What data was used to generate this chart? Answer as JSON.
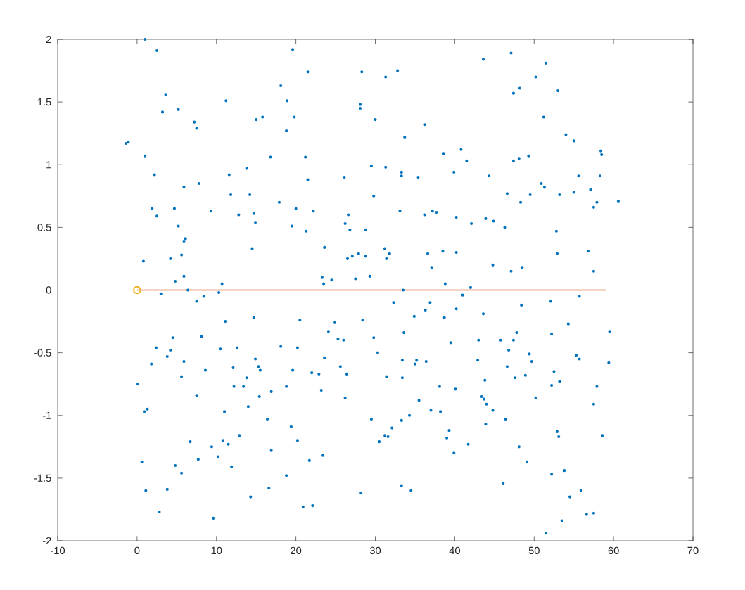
{
  "chart_data": {
    "type": "scatter",
    "xlim": [
      -10,
      70
    ],
    "ylim": [
      -2,
      2
    ],
    "xticks": [
      -10,
      0,
      10,
      20,
      30,
      40,
      50,
      60,
      70
    ],
    "yticks": [
      -2,
      -1.5,
      -1,
      -0.5,
      0,
      0.5,
      1,
      1.5,
      2
    ],
    "grid": false,
    "series": [
      {
        "marker": "circle",
        "color": "#0072bd",
        "x": [
          1.0,
          2.5,
          3.6,
          11.2,
          18.1,
          18.9,
          3.2,
          5.2,
          7.2,
          7.5,
          15.0,
          15.8,
          18.8,
          -1.4,
          -1.1,
          1.0,
          16.8,
          13.8,
          2.2,
          11.6,
          7.8,
          5.9,
          11.8,
          14.2,
          17.9,
          1.9,
          4.7,
          9.3,
          2.5,
          12.8,
          14.7,
          14.9,
          5.2,
          6.1,
          5.9,
          14.5,
          0.8,
          4.2,
          5.6,
          5.9,
          4.8,
          10.7,
          6.4,
          3.0,
          10.3,
          8.4,
          7.5,
          11.1,
          14.7,
          4.5,
          8.1,
          2.4,
          4.2,
          10.5,
          12.6,
          18.1,
          3.8,
          1.8,
          5.9,
          14.9,
          12.1,
          15.3,
          15.5,
          8.6,
          5.6,
          13.8,
          0.1,
          12.2,
          13.4,
          18.8,
          16.9,
          7.5,
          15.4,
          14.0,
          0.9,
          1.3,
          11.0,
          16.4,
          12.9,
          6.7,
          10.8,
          11.5,
          9.4,
          16.9,
          7.7,
          10.2,
          0.6,
          4.8,
          11.9,
          5.6,
          18.8,
          1.1,
          3.8,
          16.6,
          14.3,
          2.8,
          9.6,
          19.6,
          21.5,
          28.3,
          32.8,
          31.3,
          28.1,
          28.1,
          19.8,
          30.0,
          36.2,
          33.7,
          21.2,
          38.6,
          29.5,
          31.3,
          33.3,
          33.3,
          35.4,
          39.9,
          21.5,
          26.1,
          29.8,
          20.0,
          22.2,
          33.1,
          26.6,
          36.2,
          37.2,
          37.7,
          19.5,
          21.3,
          26.2,
          26.8,
          28.8,
          23.6,
          31.2,
          31.8,
          31.4,
          26.5,
          27.1,
          27.9,
          28.8,
          36.6,
          38.5,
          37.1,
          23.3,
          23.5,
          24.5,
          27.5,
          29.3,
          33.5,
          38.8,
          32.3,
          36.9,
          36.3,
          34.9,
          38.7,
          20.5,
          28.4,
          24.9,
          24.1,
          33.6,
          29.8,
          25.3,
          26.0,
          39.5,
          20.2,
          30.3,
          23.6,
          33.4,
          35.2,
          35.0,
          36.4,
          25.6,
          19.6,
          22.0,
          22.9,
          26.4,
          31.4,
          33.4,
          38.1,
          23.2,
          26.2,
          35.5,
          37.0,
          38.2,
          29.5,
          34.3,
          33.3,
          19.4,
          32.1,
          39.3,
          39.0,
          31.2,
          31.6,
          30.5,
          20.2,
          23.4,
          21.7,
          39.9,
          33.3,
          34.5,
          28.2,
          20.9,
          22.1,
          47.1,
          43.6,
          51.5,
          50.2,
          48.2,
          47.4,
          53.0,
          51.2,
          54.0,
          55.0,
          40.8,
          41.5,
          47.4,
          48.1,
          49.3,
          58.4,
          58.5,
          44.3,
          55.6,
          58.3,
          50.9,
          51.3,
          57.1,
          46.6,
          49.5,
          53.2,
          55.0,
          48.3,
          57.9,
          57.5,
          60.6,
          40.2,
          42.1,
          43.9,
          44.9,
          46.3,
          52.8,
          40.2,
          52.9,
          56.8,
          44.8,
          47.1,
          48.5,
          57.5,
          42.0,
          41.0,
          55.7,
          52.1,
          40.2,
          48.4,
          43.6,
          54.3,
          47.8,
          59.5,
          52.2,
          43.0,
          45.8,
          47.4,
          46.8,
          49.4,
          49.7,
          55.3,
          55.7,
          59.4,
          42.9,
          46.6,
          52.5,
          47.6,
          48.9,
          43.8,
          52.2,
          53.2,
          57.9,
          40.1,
          43.4,
          43.7,
          44.0,
          50.2,
          57.5,
          44.8,
          46.4,
          43.9,
          52.9,
          53.1,
          58.6,
          41.7,
          48.1,
          49.1,
          53.8,
          52.2,
          46.1,
          55.9,
          54.5,
          56.6,
          57.5,
          53.5,
          51.5
        ],
        "values": [
          2.0,
          1.91,
          1.56,
          1.51,
          1.63,
          1.51,
          1.42,
          1.44,
          1.34,
          1.29,
          1.36,
          1.38,
          1.27,
          1.17,
          1.18,
          1.07,
          1.06,
          0.97,
          0.92,
          0.92,
          0.85,
          0.82,
          0.76,
          0.76,
          0.7,
          0.65,
          0.65,
          0.63,
          0.59,
          0.6,
          0.61,
          0.54,
          0.51,
          0.41,
          0.39,
          0.33,
          0.23,
          0.25,
          0.28,
          0.11,
          0.07,
          0.05,
          0.0,
          -0.03,
          -0.02,
          -0.05,
          -0.09,
          -0.25,
          -0.22,
          -0.38,
          -0.37,
          -0.46,
          -0.48,
          -0.47,
          -0.46,
          -0.45,
          -0.53,
          -0.59,
          -0.57,
          -0.55,
          -0.62,
          -0.61,
          -0.64,
          -0.64,
          -0.69,
          -0.7,
          -0.75,
          -0.77,
          -0.77,
          -0.77,
          -0.81,
          -0.84,
          -0.85,
          -0.93,
          -0.97,
          -0.95,
          -0.97,
          -1.03,
          -1.16,
          -1.21,
          -1.2,
          -1.23,
          -1.25,
          -1.28,
          -1.35,
          -1.33,
          -1.37,
          -1.4,
          -1.41,
          -1.46,
          -1.48,
          -1.6,
          -1.59,
          -1.58,
          -1.65,
          -1.77,
          -1.82,
          1.92,
          1.74,
          1.74,
          1.75,
          1.7,
          1.48,
          1.45,
          1.38,
          1.36,
          1.32,
          1.22,
          1.06,
          1.09,
          0.99,
          0.98,
          0.94,
          0.91,
          0.9,
          0.94,
          0.88,
          0.9,
          0.75,
          0.65,
          0.63,
          0.63,
          0.6,
          0.6,
          0.63,
          0.62,
          0.51,
          0.47,
          0.53,
          0.48,
          0.48,
          0.34,
          0.33,
          0.29,
          0.25,
          0.25,
          0.27,
          0.29,
          0.27,
          0.29,
          0.31,
          0.18,
          0.1,
          0.05,
          0.08,
          0.09,
          0.11,
          0.0,
          0.05,
          -0.1,
          -0.1,
          -0.16,
          -0.21,
          -0.22,
          -0.24,
          -0.24,
          -0.26,
          -0.33,
          -0.34,
          -0.38,
          -0.39,
          -0.4,
          -0.42,
          -0.46,
          -0.5,
          -0.54,
          -0.56,
          -0.56,
          -0.59,
          -0.57,
          -0.61,
          -0.64,
          -0.66,
          -0.67,
          -0.67,
          -0.69,
          -0.7,
          -0.77,
          -0.8,
          -0.86,
          -0.88,
          -0.96,
          -0.97,
          -1.03,
          -1.0,
          -1.04,
          -1.09,
          -1.1,
          -1.12,
          -1.18,
          -1.16,
          -1.17,
          -1.21,
          -1.2,
          -1.32,
          -1.36,
          -1.3,
          -1.56,
          -1.6,
          -1.62,
          -1.73,
          -1.72,
          1.89,
          1.84,
          1.81,
          1.7,
          1.61,
          1.57,
          1.59,
          1.38,
          1.24,
          1.19,
          1.12,
          1.03,
          1.03,
          1.05,
          1.07,
          1.11,
          1.08,
          0.91,
          0.91,
          0.91,
          0.85,
          0.82,
          0.8,
          0.77,
          0.76,
          0.76,
          0.78,
          0.7,
          0.7,
          0.66,
          0.71,
          0.58,
          0.53,
          0.57,
          0.55,
          0.5,
          0.47,
          0.3,
          0.29,
          0.31,
          0.2,
          0.15,
          0.18,
          0.15,
          0.02,
          -0.04,
          -0.05,
          -0.09,
          -0.15,
          -0.12,
          -0.19,
          -0.27,
          -0.34,
          -0.33,
          -0.35,
          -0.4,
          -0.4,
          -0.4,
          -0.48,
          -0.51,
          -0.57,
          -0.52,
          -0.55,
          -0.58,
          -0.56,
          -0.61,
          -0.65,
          -0.7,
          -0.68,
          -0.72,
          -0.76,
          -0.73,
          -0.77,
          -0.79,
          -0.85,
          -0.87,
          -0.91,
          -0.86,
          -0.91,
          -0.96,
          -1.03,
          -1.07,
          -1.13,
          -1.17,
          -1.16,
          -1.23,
          -1.25,
          -1.37,
          -1.44,
          -1.47,
          -1.54,
          -1.6,
          -1.65,
          -1.79,
          -1.78,
          -1.84,
          -1.94
        ]
      },
      {
        "type": "line",
        "marker": "none",
        "color": "#d95319",
        "x": [
          0,
          59
        ],
        "values": [
          0,
          0
        ]
      },
      {
        "type": "scatter",
        "marker": "circle",
        "color": "#edb120",
        "x": [
          0
        ],
        "values": [
          0
        ]
      }
    ]
  }
}
